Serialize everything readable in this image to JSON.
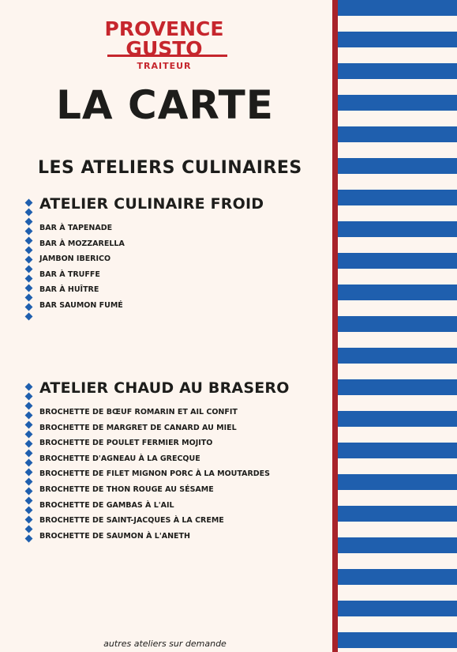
{
  "logo": {
    "line1": "PROVENCE",
    "line2": "GUSTO",
    "sub": "TRAITEUR"
  },
  "title": "LA CARTE",
  "section": "LES ATELIERS CULINAIRES",
  "ateliers": [
    {
      "title": "ATELIER CULINAIRE FROID",
      "items": [
        "BAR À TAPENADE",
        "BAR À MOZZARELLA",
        "JAMBON IBERICO",
        "BAR À TRUFFE",
        "BAR À HUÎTRE",
        "BAR SAUMON FUMÉ"
      ]
    },
    {
      "title": "ATELIER CHAUD AU BRASERO",
      "items": [
        "BROCHETTE DE BŒUF ROMARIN ET AIL CONFIT",
        "BROCHETTE DE MARGRET DE CANARD AU MIEL",
        "BROCHETTE DE POULET FERMIER MOJITO",
        "BROCHETTE D'AGNEAU À LA GRECQUE",
        "BROCHETTE DE FILET MIGNON PORC À LA MOUTARDES",
        "BROCHETTE DE THON ROUGE AU SÉSAME",
        "BROCHETTE DE GAMBAS À L'AIL",
        "BROCHETTE DE SAINT-JACQUES À LA CREME",
        "BROCHETTE DE SAUMON À L'ANETH"
      ]
    }
  ],
  "footer": "autres ateliers sur demande",
  "colors": {
    "background": "#fdf5ef",
    "brand_red": "#c6262d",
    "stripe_blue": "#1f5fae",
    "text": "#1d1d1b"
  }
}
